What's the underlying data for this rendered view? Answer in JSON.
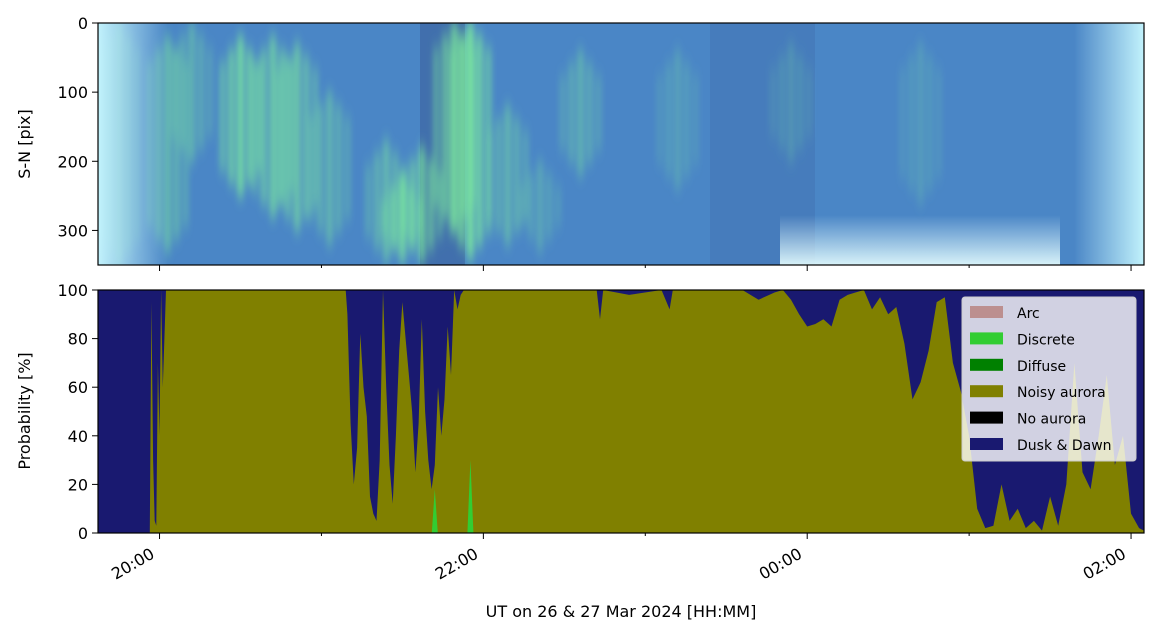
{
  "chart_data": [
    {
      "type": "heatmap",
      "title": "",
      "xlabel": "",
      "ylabel": "S-N [pix]",
      "ylim": [
        350,
        0
      ],
      "yticks": [
        0,
        100,
        200,
        300
      ],
      "ytick_labels": [
        "0",
        "100",
        "200",
        "300"
      ],
      "xlim_hours": [
        19.62,
        26.08
      ],
      "colors": {
        "sky": "#4a86c6",
        "bright_edge": "#b8f3ff",
        "aurora": "#7ff09a",
        "dark_band": "#3f6aa8"
      },
      "aurora_streaks": [
        {
          "t": 19.75,
          "ymin": 0,
          "ymax": 350,
          "intensity": 0.35
        },
        {
          "t": 20.05,
          "ymin": 20,
          "ymax": 330,
          "intensity": 0.55
        },
        {
          "t": 20.2,
          "ymin": 0,
          "ymax": 200,
          "intensity": 0.45
        },
        {
          "t": 20.5,
          "ymin": 20,
          "ymax": 250,
          "intensity": 0.85
        },
        {
          "t": 20.7,
          "ymin": 20,
          "ymax": 280,
          "intensity": 0.7
        },
        {
          "t": 20.85,
          "ymin": 30,
          "ymax": 300,
          "intensity": 0.65
        },
        {
          "t": 21.05,
          "ymin": 100,
          "ymax": 320,
          "intensity": 0.5
        },
        {
          "t": 21.4,
          "ymin": 170,
          "ymax": 345,
          "intensity": 0.55
        },
        {
          "t": 21.5,
          "ymin": 220,
          "ymax": 345,
          "intensity": 0.8
        },
        {
          "t": 21.62,
          "ymin": 180,
          "ymax": 345,
          "intensity": 0.75
        },
        {
          "t": 21.82,
          "ymin": 0,
          "ymax": 300,
          "intensity": 0.8
        },
        {
          "t": 21.92,
          "ymin": 0,
          "ymax": 340,
          "intensity": 0.95
        },
        {
          "t": 22.15,
          "ymin": 120,
          "ymax": 320,
          "intensity": 0.5
        },
        {
          "t": 22.35,
          "ymin": 200,
          "ymax": 330,
          "intensity": 0.35
        },
        {
          "t": 22.6,
          "ymin": 40,
          "ymax": 220,
          "intensity": 0.45
        },
        {
          "t": 23.2,
          "ymin": 40,
          "ymax": 240,
          "intensity": 0.3
        },
        {
          "t": 23.9,
          "ymin": 30,
          "ymax": 200,
          "intensity": 0.25
        },
        {
          "t": 24.7,
          "ymin": 30,
          "ymax": 260,
          "intensity": 0.25
        }
      ]
    },
    {
      "type": "area",
      "title": "",
      "xlabel": "UT on 26 & 27 Mar 2024 [HH:MM]",
      "ylabel": "Probability [%]",
      "ylim": [
        0,
        100
      ],
      "yticks": [
        0,
        20,
        40,
        60,
        80,
        100
      ],
      "ytick_labels": [
        "0",
        "20",
        "40",
        "60",
        "80",
        "100"
      ],
      "xlim_hours": [
        19.62,
        26.08
      ],
      "xtick_hours": [
        20,
        22,
        24,
        26
      ],
      "xtick_labels": [
        "20:00",
        "22:00",
        "00:00",
        "02:00"
      ],
      "minor_tick_hours": [
        21,
        23,
        25
      ],
      "legend_position": "upper right",
      "series": [
        {
          "name": "Arc",
          "color": "#bc8f8f"
        },
        {
          "name": "Discrete",
          "color": "#32cd32"
        },
        {
          "name": "Diffuse",
          "color": "#008000"
        },
        {
          "name": "Noisy aurora",
          "color": "#808000"
        },
        {
          "name": "No aurora",
          "color": "#000000"
        },
        {
          "name": "Dusk & Dawn",
          "color": "#191970"
        }
      ],
      "noisy_aurora_curve": {
        "x": [
          19.62,
          19.94,
          19.95,
          19.96,
          19.97,
          19.98,
          19.99,
          20.0,
          20.01,
          20.02,
          20.04,
          20.06,
          20.3,
          20.6,
          21.15,
          21.16,
          21.18,
          21.2,
          21.22,
          21.24,
          21.26,
          21.28,
          21.3,
          21.32,
          21.34,
          21.36,
          21.38,
          21.4,
          21.42,
          21.44,
          21.46,
          21.48,
          21.5,
          21.52,
          21.54,
          21.56,
          21.58,
          21.6,
          21.62,
          21.64,
          21.66,
          21.68,
          21.7,
          21.72,
          21.74,
          21.76,
          21.78,
          21.8,
          21.82,
          21.84,
          21.86,
          21.88,
          21.9,
          22.2,
          22.5,
          22.7,
          22.72,
          22.74,
          22.9,
          23.1,
          23.15,
          23.17,
          23.3,
          23.6,
          23.7,
          23.8,
          23.85,
          23.9,
          23.95,
          24.0,
          24.05,
          24.1,
          24.15,
          24.2,
          24.25,
          24.3,
          24.35,
          24.4,
          24.45,
          24.5,
          24.55,
          24.6,
          24.65,
          24.7,
          24.75,
          24.8,
          24.85,
          24.9,
          24.95,
          25.0,
          25.05,
          25.1,
          25.15,
          25.2,
          25.25,
          25.3,
          25.35,
          25.4,
          25.45,
          25.5,
          25.55,
          25.6,
          25.65,
          25.7,
          25.75,
          25.8,
          25.85,
          25.9,
          25.95,
          26.0,
          26.05,
          26.08
        ],
        "y": [
          0,
          0,
          95,
          30,
          5,
          3,
          70,
          40,
          100,
          60,
          100,
          100,
          100,
          100,
          100,
          90,
          45,
          20,
          35,
          82,
          60,
          48,
          15,
          8,
          5,
          30,
          100,
          60,
          28,
          12,
          40,
          75,
          95,
          80,
          65,
          50,
          25,
          45,
          88,
          50,
          30,
          18,
          28,
          60,
          40,
          55,
          85,
          65,
          100,
          92,
          98,
          100,
          100,
          100,
          100,
          100,
          88,
          100,
          98,
          100,
          92,
          100,
          100,
          100,
          96,
          99,
          100,
          96,
          90,
          85,
          86,
          88,
          85,
          96,
          98,
          99,
          100,
          92,
          97,
          90,
          93,
          78,
          55,
          62,
          75,
          95,
          97,
          70,
          58,
          40,
          10,
          2,
          3,
          20,
          5,
          10,
          2,
          5,
          1,
          15,
          3,
          20,
          70,
          25,
          18,
          40,
          65,
          28,
          40,
          8,
          2,
          1
        ]
      },
      "discrete_spikes": [
        {
          "t": 21.7,
          "value": 18
        },
        {
          "t": 21.92,
          "value": 30
        }
      ]
    }
  ]
}
